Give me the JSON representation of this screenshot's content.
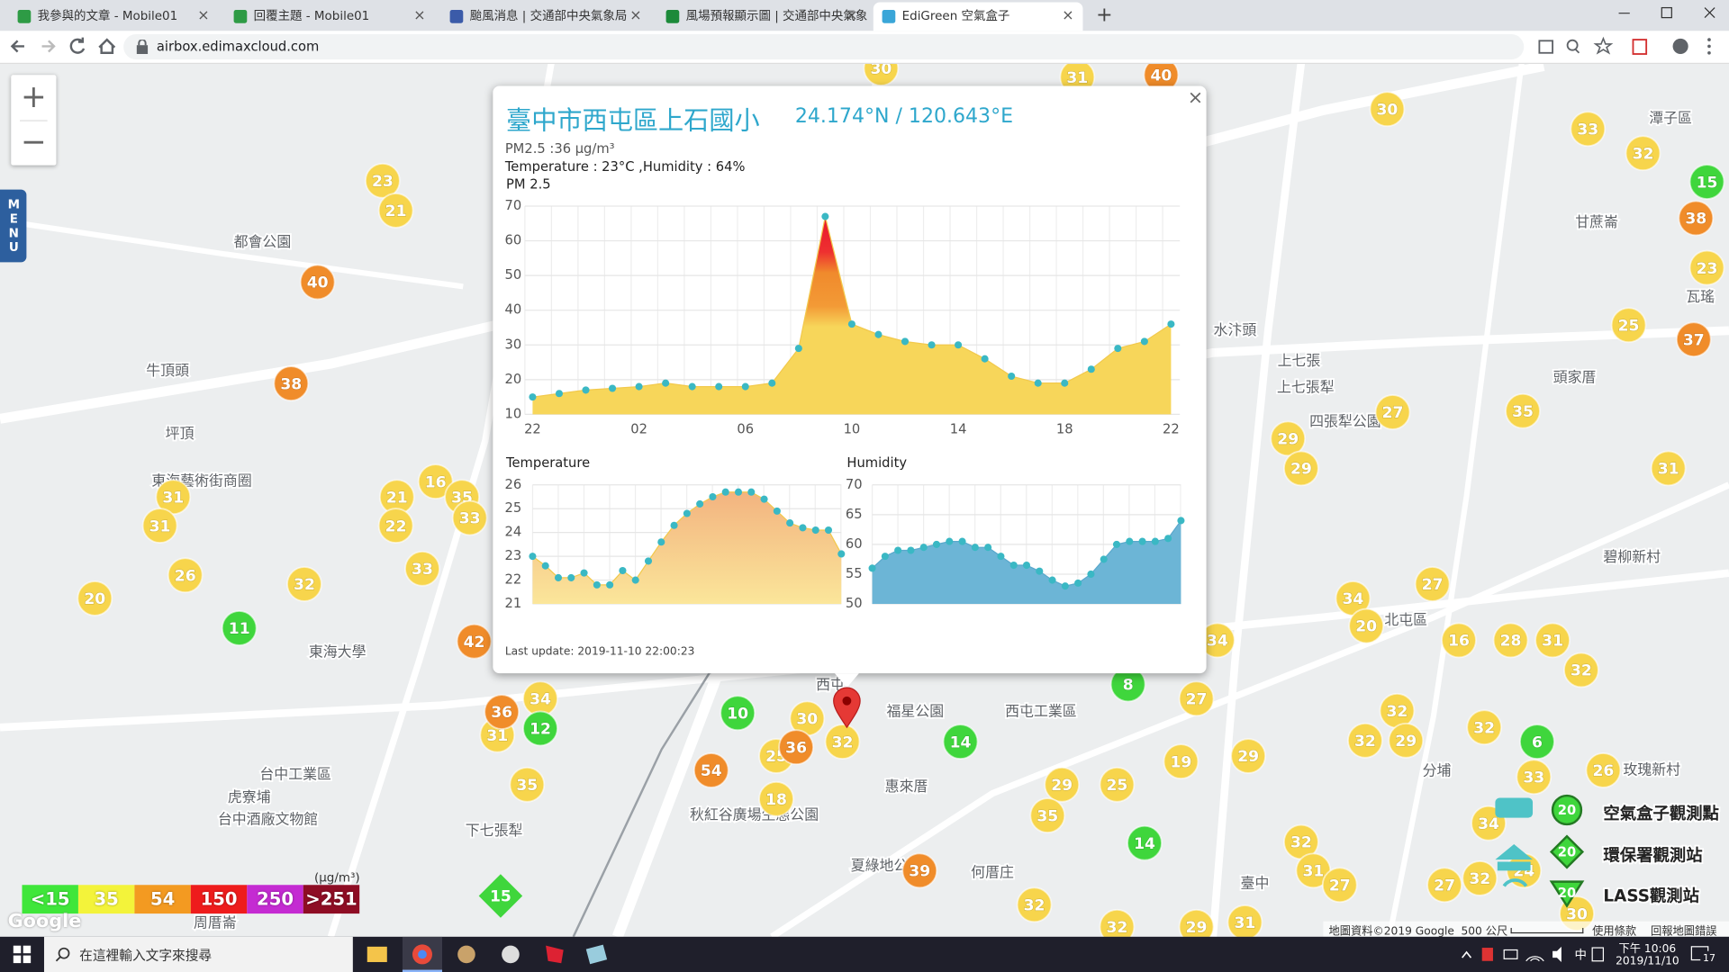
{
  "browser": {
    "tabs": [
      "我參與的文章 - Mobile01",
      "回覆主題 - Mobile01",
      "颱風消息 | 交通部中央氣象局",
      "風場預報顯示圖 | 交通部中央氣象局",
      "EdiGreen 空氣盒子"
    ],
    "new_tab": "+",
    "url": "airbox.edimaxcloud.com"
  },
  "map": {
    "menu": "MENU",
    "zoom_in": "+",
    "zoom_out": "−",
    "labels": [
      "牛頂頭",
      "坪頂",
      "都會公園",
      "東海藝術街商圈",
      "東海大學",
      "台中工業區",
      "虎寮埔",
      "台中酒廠文物館",
      "下七張犁",
      "西屯",
      "福星公園",
      "西屯工業區",
      "惠來厝",
      "秋紅谷廣場生態公園",
      "夏綠地公園",
      "何厝庄",
      "臺中",
      "水汴頭",
      "上七張",
      "上七張犁",
      "頭家厝",
      "甘蔗崙",
      "潭子區",
      "瓦瑤",
      "碧柳新村",
      "分埔",
      "北屯區",
      "玫瑰新村",
      "四張犁公園",
      "周厝崙"
    ],
    "marker_groups": [
      {
        "color": "#f7d54c",
        "values": [
          30,
          31,
          30,
          33,
          32,
          23,
          25,
          23,
          21,
          31,
          31,
          26,
          20,
          32,
          21,
          16,
          35,
          33,
          22,
          33,
          34,
          31,
          35,
          30,
          25,
          18,
          32,
          27,
          19,
          29,
          29,
          25,
          35,
          32,
          32,
          29,
          31,
          27,
          29,
          29,
          35,
          31,
          27,
          34,
          20,
          16,
          28,
          31,
          32,
          32,
          32,
          29,
          32,
          33,
          26,
          34,
          32,
          31,
          27,
          27,
          32,
          24,
          30,
          34
        ]
      },
      {
        "color": "#f08c2a",
        "values": [
          40,
          38,
          37,
          40,
          38,
          42,
          36,
          54,
          36,
          39
        ]
      },
      {
        "color": "#3fd63c",
        "values": [
          15,
          11,
          12,
          10,
          14,
          8,
          14,
          6
        ]
      }
    ],
    "station_marker": {
      "value": 15,
      "color": "#3fd63c"
    },
    "legend_scale": {
      "unit": "(μg/m³)",
      "items": [
        {
          "label": "<15",
          "color": "#3fe63a"
        },
        {
          "label": "35",
          "color": "#f3f33a"
        },
        {
          "label": "54",
          "color": "#f39a21"
        },
        {
          "label": "150",
          "color": "#ee1c1c"
        },
        {
          "label": "250",
          "color": "#c42bd2"
        },
        {
          "label": ">251",
          "color": "#8e0d24"
        }
      ]
    },
    "station_legend": {
      "icon_value": 20,
      "items": [
        "空氣盒子觀測點",
        "環保署觀測站",
        "LASS觀測站"
      ]
    },
    "footer": {
      "logo": "Google",
      "data": "地圖資料©2019 Google",
      "scale": "500 公尺",
      "terms": "使用條款",
      "report": "回報地圖錯誤"
    }
  },
  "popup": {
    "title": "臺中市西屯區上石國小",
    "coords": "24.174°N / 120.643°E",
    "close": "×",
    "pm25_text": "PM2.5 :36 μg/m³",
    "weather_text": "Temperature : 23°C ,Humidity : 64%",
    "last_update": "Last update: 2019-11-10 22:00:23",
    "pm25_chart": {
      "type": "area",
      "title": "PM 2.5",
      "color": "#3ab8c4",
      "categories": [
        "22",
        null,
        null,
        null,
        "02",
        null,
        null,
        null,
        "06",
        null,
        null,
        null,
        "10",
        null,
        null,
        null,
        "14",
        null,
        null,
        null,
        "18",
        null,
        null,
        null,
        "22"
      ],
      "values": [
        15,
        16,
        17,
        17.5,
        18,
        19,
        18,
        18,
        18,
        19,
        29,
        67,
        36,
        33,
        31,
        30,
        30,
        26,
        21,
        19,
        19,
        23,
        29,
        31,
        36
      ],
      "ylim": [
        10,
        70
      ],
      "yticks": [
        10,
        20,
        30,
        40,
        50,
        60,
        70
      ],
      "grid": true
    },
    "temperature_chart": {
      "type": "area",
      "title": "Temperature",
      "color": "#3ab8c4",
      "values": [
        23.0,
        22.6,
        22.1,
        22.1,
        22.3,
        21.8,
        21.8,
        22.4,
        22.0,
        22.8,
        23.6,
        24.3,
        24.8,
        25.2,
        25.5,
        25.7,
        25.7,
        25.7,
        25.4,
        24.9,
        24.4,
        24.2,
        24.1,
        24.1,
        23.1
      ],
      "ylim": [
        21,
        26
      ],
      "yticks": [
        21,
        22,
        23,
        24,
        25,
        26
      ],
      "grid": true
    },
    "humidity_chart": {
      "type": "area",
      "title": "Humidity",
      "color": "#3ab8c4",
      "fill": "#6cb5d6",
      "values": [
        56,
        58,
        59,
        59,
        59.5,
        60,
        60.5,
        60.5,
        59.5,
        59.5,
        58,
        56.5,
        56.5,
        55.5,
        54,
        53,
        53.5,
        55,
        57.5,
        60,
        60.5,
        60.5,
        60.5,
        61,
        64
      ],
      "ylim": [
        50,
        70
      ],
      "yticks": [
        50,
        55,
        60,
        65,
        70
      ],
      "grid": true
    }
  },
  "taskbar": {
    "search": "在這裡輸入文字來搜尋",
    "time": "下午 10:06",
    "date": "2019/11/10",
    "notifications": 17
  }
}
